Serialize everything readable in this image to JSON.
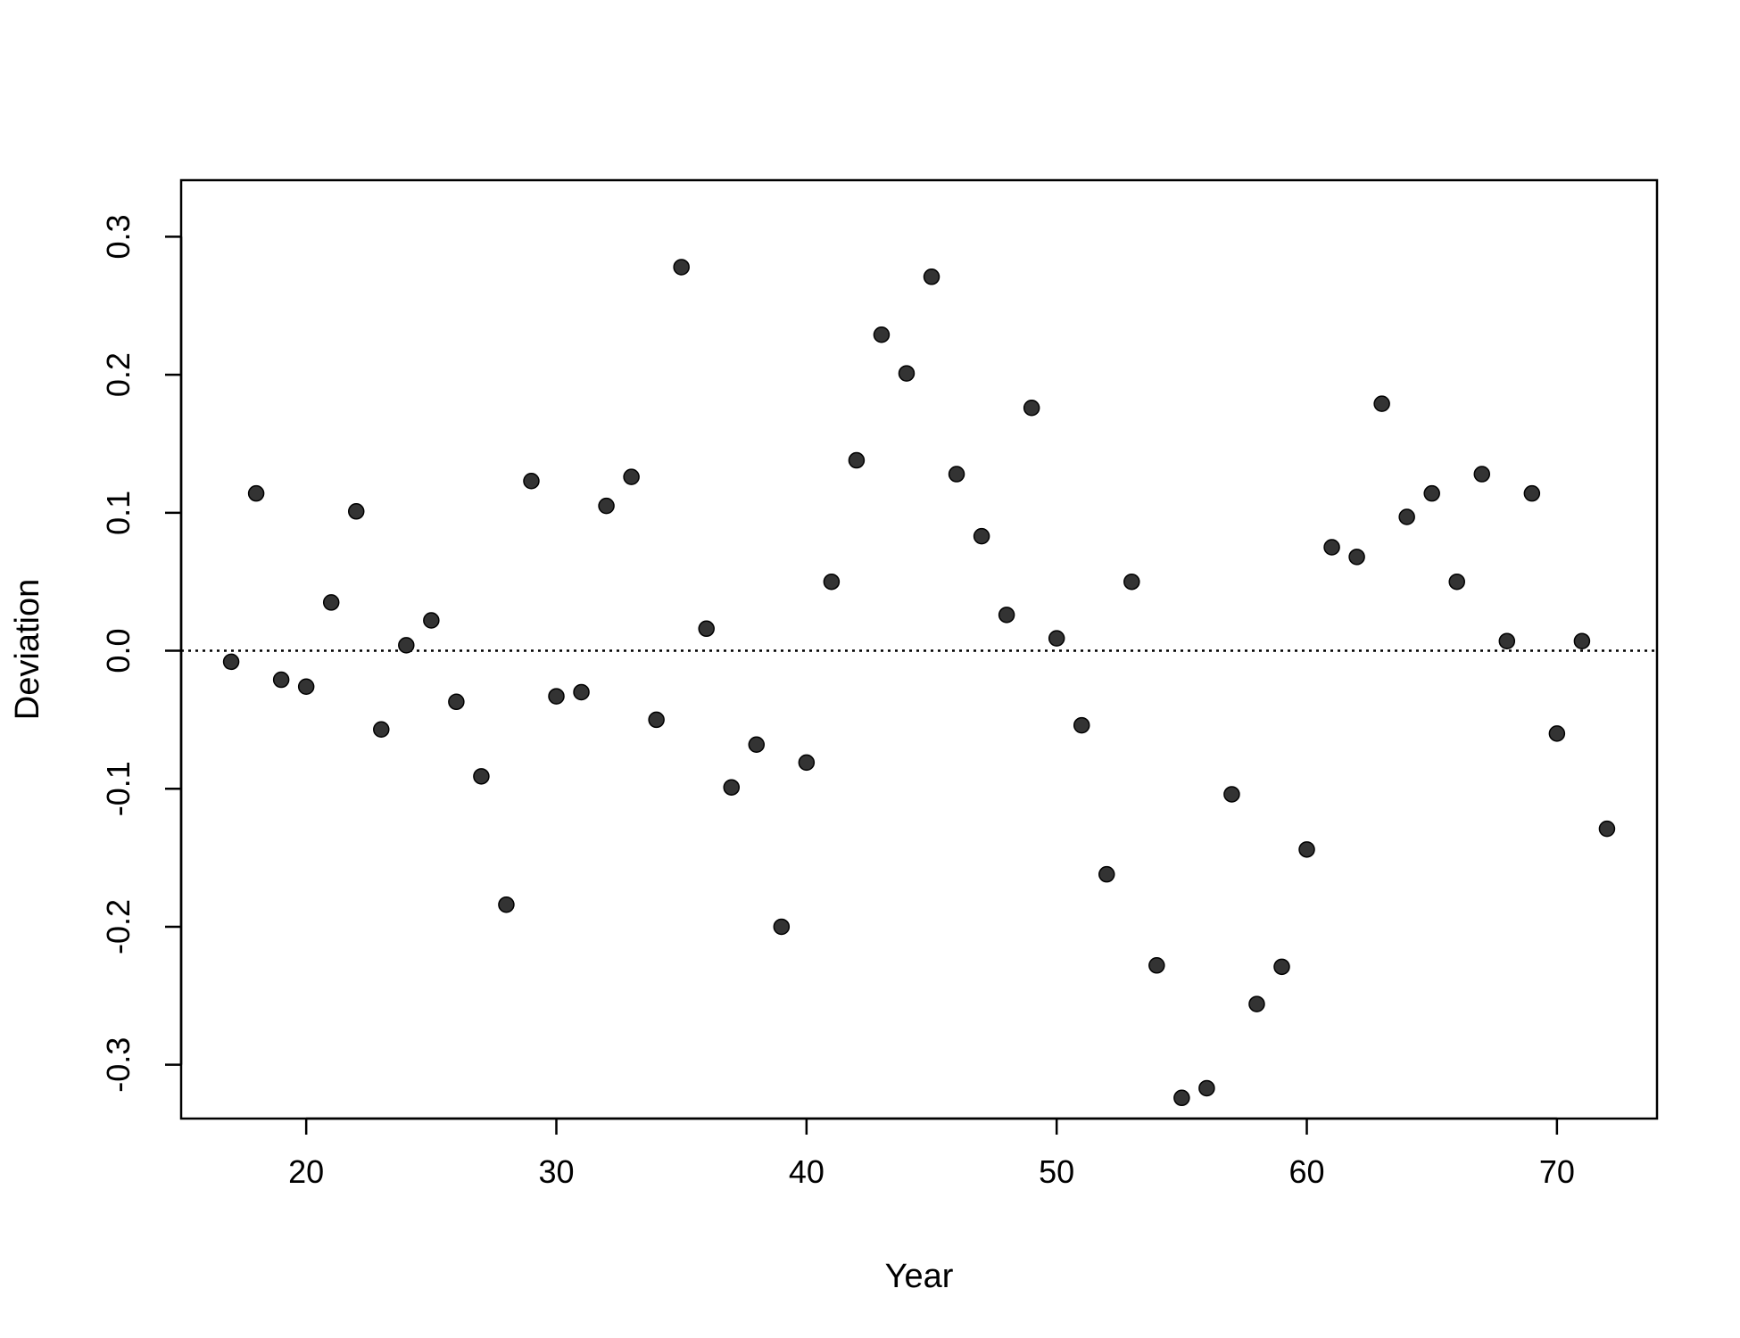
{
  "chart_data": {
    "type": "scatter",
    "title": "",
    "xlabel": "Year",
    "ylabel": "Deviation",
    "xlim": [
      15,
      74
    ],
    "ylim": [
      -0.339,
      0.341
    ],
    "x_ticks": [
      20,
      30,
      40,
      50,
      60,
      70
    ],
    "x_tick_labels": [
      "20",
      "30",
      "40",
      "50",
      "60",
      "70"
    ],
    "y_ticks": [
      -0.3,
      -0.2,
      -0.1,
      0.0,
      0.1,
      0.2,
      0.3
    ],
    "y_tick_labels": [
      "-0.3",
      "-0.2",
      "-0.1",
      "0.0",
      "0.1",
      "0.2",
      "0.3"
    ],
    "grid": false,
    "reference_line": {
      "y": 0.0,
      "style": "dotted"
    },
    "point_color": "#333333",
    "points": [
      {
        "x": 17,
        "y": -0.008
      },
      {
        "x": 18,
        "y": 0.114
      },
      {
        "x": 19,
        "y": -0.021
      },
      {
        "x": 20,
        "y": -0.026
      },
      {
        "x": 21,
        "y": 0.035
      },
      {
        "x": 22,
        "y": 0.101
      },
      {
        "x": 23,
        "y": -0.057
      },
      {
        "x": 24,
        "y": 0.004
      },
      {
        "x": 25,
        "y": 0.022
      },
      {
        "x": 26,
        "y": -0.037
      },
      {
        "x": 27,
        "y": -0.091
      },
      {
        "x": 28,
        "y": -0.184
      },
      {
        "x": 29,
        "y": 0.123
      },
      {
        "x": 30,
        "y": -0.033
      },
      {
        "x": 31,
        "y": -0.03
      },
      {
        "x": 32,
        "y": 0.105
      },
      {
        "x": 33,
        "y": 0.126
      },
      {
        "x": 34,
        "y": -0.05
      },
      {
        "x": 35,
        "y": 0.278
      },
      {
        "x": 36,
        "y": 0.016
      },
      {
        "x": 37,
        "y": -0.099
      },
      {
        "x": 38,
        "y": -0.068
      },
      {
        "x": 39,
        "y": -0.2
      },
      {
        "x": 40,
        "y": -0.081
      },
      {
        "x": 41,
        "y": 0.05
      },
      {
        "x": 42,
        "y": 0.138
      },
      {
        "x": 43,
        "y": 0.229
      },
      {
        "x": 44,
        "y": 0.201
      },
      {
        "x": 45,
        "y": 0.271
      },
      {
        "x": 46,
        "y": 0.128
      },
      {
        "x": 47,
        "y": 0.083
      },
      {
        "x": 48,
        "y": 0.026
      },
      {
        "x": 49,
        "y": 0.176
      },
      {
        "x": 50,
        "y": 0.009
      },
      {
        "x": 51,
        "y": -0.054
      },
      {
        "x": 52,
        "y": -0.162
      },
      {
        "x": 53,
        "y": 0.05
      },
      {
        "x": 54,
        "y": -0.228
      },
      {
        "x": 55,
        "y": -0.324
      },
      {
        "x": 56,
        "y": -0.317
      },
      {
        "x": 57,
        "y": -0.104
      },
      {
        "x": 58,
        "y": -0.256
      },
      {
        "x": 59,
        "y": -0.229
      },
      {
        "x": 60,
        "y": -0.144
      },
      {
        "x": 61,
        "y": 0.075
      },
      {
        "x": 62,
        "y": 0.068
      },
      {
        "x": 63,
        "y": 0.179
      },
      {
        "x": 64,
        "y": 0.097
      },
      {
        "x": 65,
        "y": 0.114
      },
      {
        "x": 66,
        "y": 0.05
      },
      {
        "x": 67,
        "y": 0.128
      },
      {
        "x": 68,
        "y": 0.007
      },
      {
        "x": 69,
        "y": 0.114
      },
      {
        "x": 70,
        "y": -0.06
      },
      {
        "x": 71,
        "y": 0.007
      },
      {
        "x": 72,
        "y": -0.129
      }
    ]
  }
}
